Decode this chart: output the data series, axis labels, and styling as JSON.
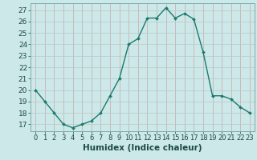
{
  "x": [
    0,
    1,
    2,
    3,
    4,
    5,
    6,
    7,
    8,
    9,
    10,
    11,
    12,
    13,
    14,
    15,
    16,
    17,
    18,
    19,
    20,
    21,
    22,
    23
  ],
  "y": [
    20.0,
    19.0,
    18.0,
    17.0,
    16.7,
    17.0,
    17.3,
    18.0,
    19.5,
    21.0,
    24.0,
    24.5,
    26.3,
    26.3,
    27.2,
    26.3,
    26.7,
    26.2,
    23.3,
    19.5,
    19.5,
    19.2,
    18.5,
    18.0
  ],
  "line_color": "#1a7a6e",
  "marker": "D",
  "marker_size": 2.0,
  "background_color": "#cce8e8",
  "grid_color_v": "#c8a8a8",
  "grid_color_h": "#b8c8c8",
  "xlabel": "Humidex (Indice chaleur)",
  "xlabel_fontsize": 7.5,
  "ylabel_values": [
    17,
    18,
    19,
    20,
    21,
    22,
    23,
    24,
    25,
    26,
    27
  ],
  "xlim": [
    -0.5,
    23.5
  ],
  "ylim": [
    16.4,
    27.6
  ],
  "xtick_labels": [
    "0",
    "1",
    "2",
    "3",
    "4",
    "5",
    "6",
    "7",
    "8",
    "9",
    "10",
    "11",
    "12",
    "13",
    "14",
    "15",
    "16",
    "17",
    "18",
    "19",
    "20",
    "21",
    "22",
    "23"
  ],
  "tick_fontsize": 6.0,
  "ytick_fontsize": 6.5,
  "line_width": 1.0
}
